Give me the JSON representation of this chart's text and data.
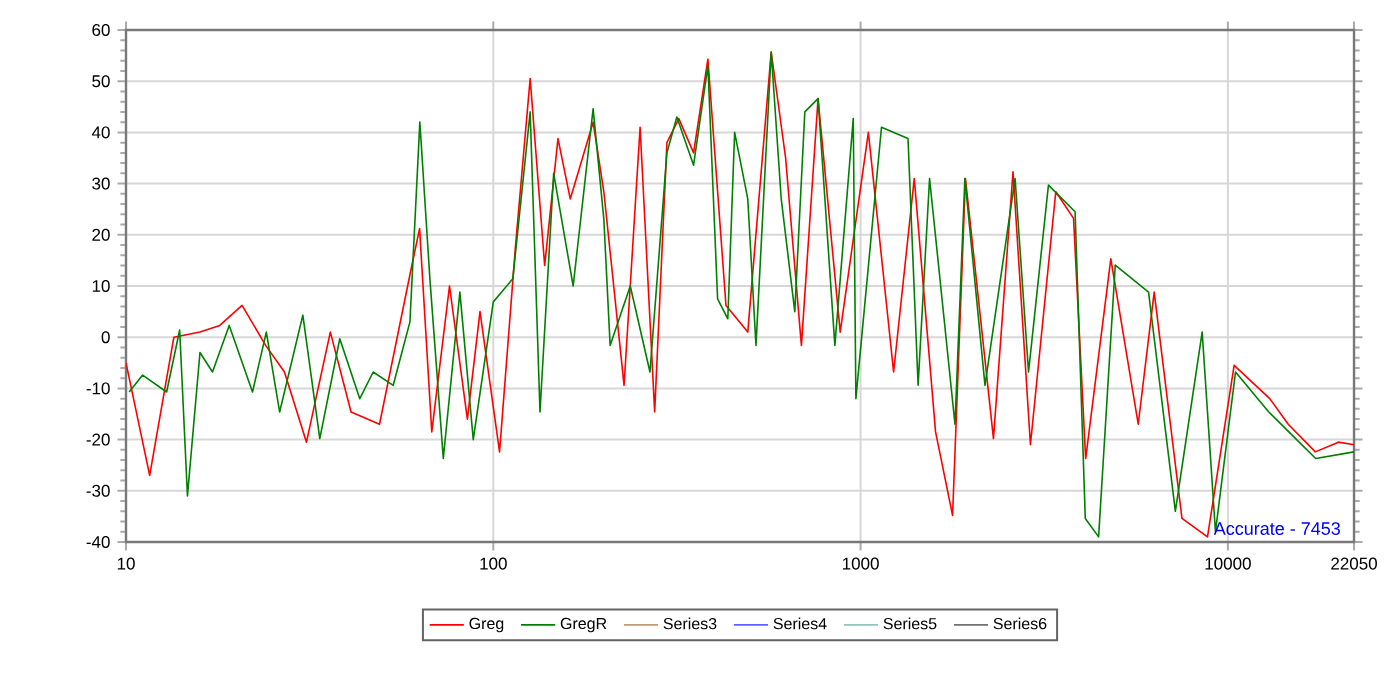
{
  "chart_data": {
    "type": "line",
    "log": "x",
    "xlim": [
      10,
      22050
    ],
    "ylim": [
      -40,
      60
    ],
    "xticks": [
      10,
      100,
      1000,
      10000,
      22050
    ],
    "yticks": [
      -40,
      -30,
      -20,
      -10,
      0,
      10,
      20,
      30,
      40,
      50,
      60
    ],
    "grid": true,
    "legend": "bottom",
    "marker": "none",
    "line_style": "solid",
    "annotations": [
      "Accurate - 7453"
    ],
    "series": [
      {
        "name": "Greg",
        "color": "#ff0000",
        "x": [
          10,
          11.6,
          13.5,
          15.9,
          18,
          20.7,
          24,
          27,
          31,
          36,
          41,
          49,
          60,
          63,
          68,
          76,
          85,
          92,
          104,
          115,
          126,
          138,
          150,
          162,
          187,
          200,
          227,
          251,
          275,
          297,
          320,
          351,
          384,
          430,
          493,
          571,
          625,
          690,
          766,
          880,
          1050,
          1230,
          1400,
          1600,
          1780,
          1930,
          2300,
          2600,
          2900,
          3400,
          3800,
          4100,
          4800,
          5700,
          6300,
          7500,
          8800,
          10400,
          13000,
          14600,
          17300,
          20000,
          22050
        ],
        "values": [
          -5,
          -27,
          0,
          1,
          2.3,
          6.2,
          -1.6,
          -6.8,
          -20.5,
          1,
          -14.6,
          -17,
          14,
          21.2,
          -18.5,
          10,
          -16,
          5,
          -22.4,
          18,
          50.5,
          14,
          38.8,
          27,
          42,
          28.4,
          -9.4,
          41,
          -14.6,
          38,
          42.7,
          36,
          54.3,
          6.2,
          1,
          55.7,
          35,
          -1.6,
          46.6,
          1,
          40,
          -6.8,
          31,
          -18.5,
          -34.8,
          31,
          -19.8,
          32.3,
          -21,
          28.4,
          23.2,
          -23.7,
          15.3,
          -17,
          8.8,
          -35.4,
          -39,
          -5.5,
          -12,
          -17,
          -22.4,
          -20.5,
          -21
        ]
      },
      {
        "name": "GregR",
        "color": "#008000",
        "x": [
          10.2,
          11.1,
          12.9,
          14,
          14.7,
          15.9,
          17.2,
          19.1,
          22.1,
          24.1,
          26.2,
          30.3,
          33.7,
          38.2,
          43.3,
          47.1,
          53.4,
          59.3,
          63.1,
          67.2,
          73.1,
          81.1,
          88.2,
          100,
          113,
          126,
          134,
          146,
          165,
          187,
          200,
          208,
          236,
          267,
          297,
          316,
          351,
          384,
          408,
          435,
          454,
          493,
          519,
          571,
          608,
          662,
          705,
          766,
          851,
          955,
          971,
          1140,
          1346,
          1434,
          1541,
          1807,
          1923,
          2181,
          2634,
          2866,
          3247,
          3837,
          4090,
          4446,
          4936,
          6081,
          7194,
          8511,
          9250,
          10490,
          12920,
          14650,
          17340,
          22050
        ],
        "values": [
          -10.7,
          -7.4,
          -10.7,
          1.4,
          -31,
          -3,
          -6.8,
          2.3,
          -10.7,
          1,
          -14.6,
          4.3,
          -19.8,
          -0.3,
          -12,
          -6.8,
          -9.4,
          3,
          42,
          11.4,
          -23.7,
          8.8,
          -20,
          6.9,
          11.4,
          44,
          -14.6,
          32,
          10,
          44.6,
          23,
          -1.6,
          10,
          -6.8,
          36,
          43,
          33.6,
          53,
          7.5,
          3.6,
          40,
          27,
          -1.6,
          55.7,
          27,
          5,
          44,
          46.6,
          -1.6,
          42.7,
          -12,
          41,
          38.8,
          -9.4,
          31,
          -17,
          31,
          -9.4,
          31,
          -6.8,
          29.7,
          24.5,
          -35.4,
          -39,
          14.1,
          8.8,
          -34,
          1,
          -38,
          -6.8,
          -14.6,
          -18.5,
          -23.7,
          -22.4
        ]
      },
      {
        "name": "Series3",
        "color": "#c09a78"
      },
      {
        "name": "Series4",
        "color": "#6060ff"
      },
      {
        "name": "Series5",
        "color": "#90c4bc"
      },
      {
        "name": "Series6",
        "color": "#707070"
      }
    ]
  }
}
